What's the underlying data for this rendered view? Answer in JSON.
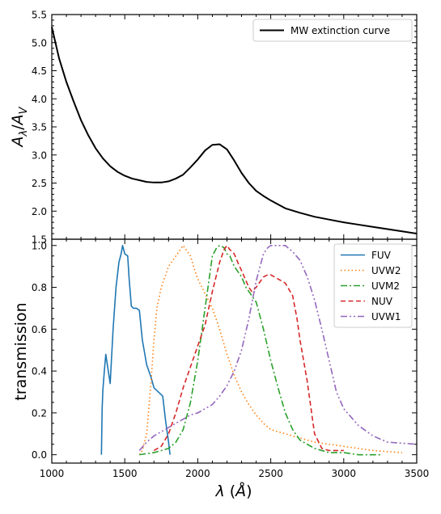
{
  "chart_data": [
    {
      "type": "line",
      "panel": "top",
      "xlim": [
        1000,
        3500
      ],
      "ylim": [
        1.5,
        5.5
      ],
      "ylabel": "A_λ/A_V",
      "yticks": [
        "1.5",
        "2.0",
        "2.5",
        "3.0",
        "3.5",
        "4.0",
        "4.5",
        "5.0",
        "5.5"
      ],
      "legend_placement": "top-right",
      "series": [
        {
          "name": "MW extinction curve",
          "color": "#000000",
          "style": "solid",
          "x": [
            1000,
            1050,
            1100,
            1150,
            1200,
            1250,
            1300,
            1350,
            1400,
            1450,
            1500,
            1550,
            1600,
            1650,
            1700,
            1750,
            1800,
            1850,
            1900,
            1950,
            2000,
            2050,
            2100,
            2150,
            2200,
            2250,
            2300,
            2350,
            2400,
            2450,
            2500,
            2600,
            2700,
            2800,
            2900,
            3000,
            3100,
            3200,
            3300,
            3400,
            3500
          ],
          "y": [
            5.28,
            4.72,
            4.3,
            3.95,
            3.62,
            3.35,
            3.12,
            2.94,
            2.8,
            2.7,
            2.63,
            2.58,
            2.55,
            2.52,
            2.51,
            2.51,
            2.53,
            2.58,
            2.65,
            2.78,
            2.92,
            3.08,
            3.18,
            3.19,
            3.1,
            2.9,
            2.68,
            2.5,
            2.36,
            2.27,
            2.19,
            2.05,
            1.97,
            1.9,
            1.85,
            1.8,
            1.76,
            1.72,
            1.68,
            1.64,
            1.6
          ]
        }
      ]
    },
    {
      "type": "line",
      "panel": "bottom",
      "xlim": [
        1000,
        3500
      ],
      "ylim": [
        -0.04,
        1.03
      ],
      "xlabel": "λ (Å)",
      "ylabel": "transmission",
      "xticks": [
        "1000",
        "1500",
        "2000",
        "2500",
        "3000",
        "3500"
      ],
      "yticks": [
        "0.0",
        "0.2",
        "0.4",
        "0.6",
        "0.8",
        "1.0"
      ],
      "legend_placement": "top-right",
      "series": [
        {
          "name": "FUV",
          "color": "#1f77b4",
          "style": "solid",
          "x": [
            1340,
            1345,
            1350,
            1360,
            1370,
            1385,
            1400,
            1420,
            1440,
            1460,
            1475,
            1485,
            1500,
            1520,
            1530,
            1545,
            1560,
            1580,
            1600,
            1620,
            1650,
            1680,
            1700,
            1730,
            1760,
            1780,
            1800,
            1810
          ],
          "y": [
            0.0,
            0.22,
            0.31,
            0.4,
            0.48,
            0.41,
            0.34,
            0.6,
            0.8,
            0.92,
            0.96,
            1.0,
            0.96,
            0.95,
            0.84,
            0.71,
            0.7,
            0.7,
            0.69,
            0.55,
            0.43,
            0.37,
            0.32,
            0.3,
            0.28,
            0.16,
            0.06,
            0.0
          ]
        },
        {
          "name": "UVW2",
          "color": "#ff7f0e",
          "style": "dotted",
          "x": [
            1600,
            1620,
            1650,
            1680,
            1700,
            1720,
            1750,
            1780,
            1800,
            1850,
            1880,
            1900,
            1920,
            1950,
            1980,
            2000,
            2050,
            2100,
            2150,
            2200,
            2250,
            2300,
            2350,
            2400,
            2450,
            2500,
            2600,
            2700,
            2800,
            2900,
            3000,
            3200,
            3400
          ],
          "y": [
            0.0,
            0.02,
            0.1,
            0.35,
            0.55,
            0.7,
            0.8,
            0.86,
            0.9,
            0.95,
            0.98,
            1.0,
            0.98,
            0.95,
            0.88,
            0.84,
            0.77,
            0.7,
            0.6,
            0.48,
            0.38,
            0.3,
            0.24,
            0.19,
            0.15,
            0.12,
            0.1,
            0.08,
            0.06,
            0.05,
            0.04,
            0.02,
            0.01
          ]
        },
        {
          "name": "UVM2",
          "color": "#2ca02c",
          "style": "dashdot",
          "x": [
            1600,
            1700,
            1750,
            1800,
            1850,
            1900,
            1950,
            2000,
            2050,
            2080,
            2100,
            2130,
            2150,
            2180,
            2200,
            2220,
            2250,
            2280,
            2300,
            2330,
            2350,
            2400,
            2450,
            2500,
            2550,
            2600,
            2650,
            2700,
            2800,
            2900,
            3000,
            3100,
            3250
          ],
          "y": [
            0.0,
            0.01,
            0.02,
            0.03,
            0.06,
            0.12,
            0.25,
            0.45,
            0.7,
            0.85,
            0.95,
            0.99,
            1.0,
            0.99,
            0.96,
            0.95,
            0.9,
            0.87,
            0.85,
            0.8,
            0.78,
            0.73,
            0.6,
            0.45,
            0.32,
            0.2,
            0.12,
            0.07,
            0.03,
            0.01,
            0.01,
            0.0,
            0.0
          ]
        },
        {
          "name": "NUV",
          "color": "#d62728",
          "style": "dashed",
          "x": [
            1700,
            1750,
            1800,
            1850,
            1900,
            1950,
            2000,
            2050,
            2100,
            2150,
            2180,
            2200,
            2220,
            2250,
            2280,
            2300,
            2350,
            2370,
            2400,
            2450,
            2480,
            2500,
            2550,
            2600,
            2650,
            2680,
            2700,
            2750,
            2800,
            2850,
            2900,
            3000
          ],
          "y": [
            0.02,
            0.04,
            0.1,
            0.2,
            0.32,
            0.42,
            0.52,
            0.62,
            0.78,
            0.92,
            0.98,
            1.0,
            0.98,
            0.96,
            0.91,
            0.88,
            0.8,
            0.78,
            0.8,
            0.85,
            0.86,
            0.86,
            0.84,
            0.82,
            0.76,
            0.65,
            0.55,
            0.35,
            0.1,
            0.03,
            0.02,
            0.02
          ]
        },
        {
          "name": "UVW1",
          "color": "#9467bd",
          "style": "dashdotdot",
          "x": [
            1600,
            1650,
            1700,
            1750,
            1800,
            1850,
            1900,
            1950,
            2000,
            2050,
            2100,
            2150,
            2200,
            2250,
            2300,
            2350,
            2400,
            2450,
            2480,
            2500,
            2550,
            2600,
            2650,
            2700,
            2750,
            2800,
            2850,
            2900,
            2950,
            3000,
            3100,
            3200,
            3300,
            3500
          ],
          "y": [
            0.02,
            0.06,
            0.09,
            0.11,
            0.13,
            0.15,
            0.17,
            0.19,
            0.2,
            0.22,
            0.24,
            0.28,
            0.33,
            0.4,
            0.5,
            0.65,
            0.83,
            0.96,
            0.99,
            1.0,
            1.0,
            1.0,
            0.97,
            0.93,
            0.85,
            0.74,
            0.6,
            0.45,
            0.3,
            0.22,
            0.14,
            0.09,
            0.06,
            0.05
          ]
        }
      ]
    }
  ]
}
